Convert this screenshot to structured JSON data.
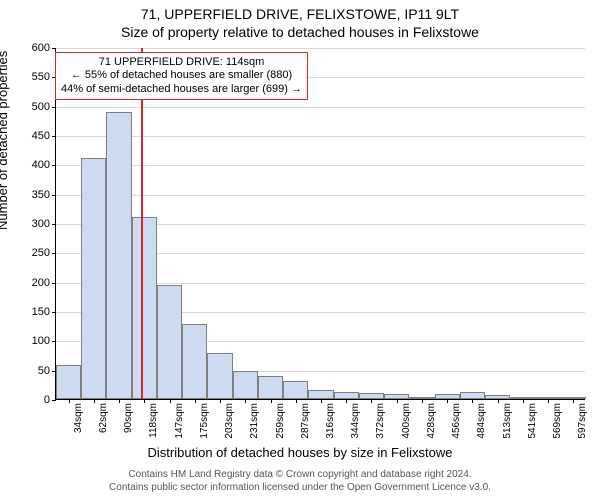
{
  "title": "71, UPPERFIELD DRIVE, FELIXSTOWE, IP11 9LT",
  "subtitle": "Size of property relative to detached houses in Felixstowe",
  "ylabel": "Number of detached properties",
  "xlabel": "Distribution of detached houses by size in Felixstowe",
  "footer": "Contains HM Land Registry data © Crown copyright and database right 2024.\nContains public sector information licensed under the Open Government Licence v3.0.",
  "chart": {
    "type": "histogram",
    "ylim": [
      0,
      600
    ],
    "ytick_step": 50,
    "grid_color": "#d9d9d9",
    "background": "#ffffff",
    "bar_fill": "#cddbf0",
    "bar_stroke": "#7f7f7f",
    "reference_color": "#d62728",
    "axis_color": "#000000",
    "tick_fontsize": 11,
    "xtick_fontsize": 10,
    "reference_value": 114,
    "categories": [
      "34sqm",
      "62sqm",
      "90sqm",
      "118sqm",
      "147sqm",
      "175sqm",
      "203sqm",
      "231sqm",
      "259sqm",
      "287sqm",
      "316sqm",
      "344sqm",
      "372sqm",
      "400sqm",
      "428sqm",
      "456sqm",
      "484sqm",
      "513sqm",
      "541sqm",
      "569sqm",
      "597sqm"
    ],
    "values": [
      58,
      410,
      490,
      310,
      195,
      128,
      78,
      48,
      40,
      30,
      15,
      12,
      10,
      8,
      2,
      8,
      12,
      6,
      2,
      2,
      2
    ]
  },
  "annotation": {
    "line1": "71 UPPERFIELD DRIVE: 114sqm",
    "line2": "← 55% of detached houses are smaller (880)",
    "line3": "44% of semi-detached houses are larger (699) →",
    "border_color": "#d62728",
    "background": "#ffffff",
    "fontsize": 11
  }
}
